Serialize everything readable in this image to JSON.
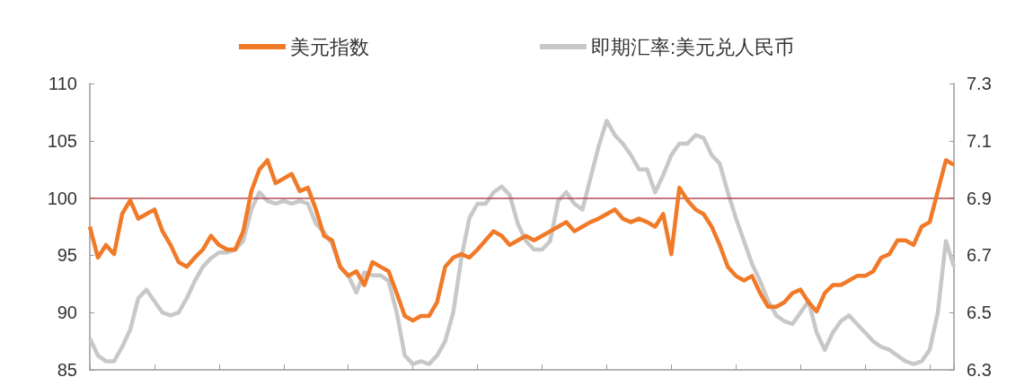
{
  "chart_data": {
    "type": "line",
    "categories": [
      null,
      null,
      null,
      null,
      null,
      null,
      null,
      null,
      null,
      null,
      null,
      null,
      null,
      null,
      null,
      null,
      null,
      null,
      null,
      null,
      null,
      null,
      null,
      null,
      null,
      null,
      null,
      null,
      null,
      null,
      null,
      null,
      null,
      null,
      null,
      null,
      null,
      null,
      null,
      null,
      null,
      null,
      null,
      null,
      null,
      null,
      null,
      null,
      null,
      null,
      null,
      null,
      null,
      null,
      null,
      null,
      null,
      null,
      null,
      null,
      null,
      null,
      null,
      null,
      null,
      null,
      null,
      null,
      null,
      null,
      null,
      null,
      null,
      null,
      null,
      null,
      null,
      null,
      null,
      null,
      null,
      null,
      null,
      null,
      null,
      null,
      null,
      null,
      null,
      null,
      null,
      null,
      null,
      null,
      null,
      null,
      null,
      null,
      null,
      null,
      null,
      null,
      null,
      null,
      null,
      null,
      null,
      null
    ],
    "series": [
      {
        "name": "美元指数",
        "color": "#f07a28",
        "values": [
          97.5,
          94.8,
          95.9,
          95.1,
          98.6,
          99.8,
          98.2,
          98.6,
          99.0,
          97.1,
          95.9,
          94.4,
          94.0,
          94.8,
          95.5,
          96.7,
          95.9,
          95.5,
          95.5,
          97.1,
          100.6,
          102.5,
          103.3,
          101.3,
          101.7,
          102.1,
          100.6,
          100.9,
          99.0,
          96.7,
          96.3,
          94.0,
          93.2,
          93.6,
          92.4,
          94.4,
          94.0,
          93.6,
          91.7,
          89.7,
          89.3,
          89.7,
          89.7,
          90.9,
          94.0,
          94.8,
          95.1,
          94.8,
          95.5,
          96.3,
          97.1,
          96.7,
          95.9,
          96.3,
          96.7,
          96.3,
          96.7,
          97.1,
          97.5,
          97.9,
          97.1,
          97.5,
          97.9,
          98.2,
          98.6,
          99.0,
          98.2,
          97.9,
          98.2,
          97.9,
          97.5,
          98.6,
          95.1,
          100.9,
          99.8,
          99.0,
          98.6,
          97.5,
          95.9,
          94.0,
          93.2,
          92.8,
          93.2,
          91.7,
          90.5,
          90.5,
          90.9,
          91.7,
          92.0,
          90.9,
          90.1,
          91.7,
          92.4,
          92.4,
          92.8,
          93.2,
          93.2,
          93.6,
          94.8,
          95.1,
          96.3,
          96.3,
          95.9,
          97.5,
          97.9,
          100.6,
          103.3,
          102.9
        ]
      },
      {
        "name": "即期汇率:美元兑人民币",
        "color": "#c8c8c8",
        "axis": "y2",
        "values": [
          6.41,
          6.35,
          6.33,
          6.33,
          6.38,
          6.44,
          6.55,
          6.58,
          6.54,
          6.5,
          6.49,
          6.5,
          6.55,
          6.61,
          6.66,
          6.69,
          6.71,
          6.71,
          6.72,
          6.75,
          6.86,
          6.92,
          6.89,
          6.88,
          6.89,
          6.88,
          6.89,
          6.88,
          6.81,
          6.78,
          6.74,
          6.66,
          6.63,
          6.57,
          6.64,
          6.63,
          6.63,
          6.61,
          6.5,
          6.35,
          6.32,
          6.33,
          6.32,
          6.35,
          6.4,
          6.5,
          6.69,
          6.83,
          6.88,
          6.88,
          6.92,
          6.94,
          6.91,
          6.81,
          6.75,
          6.72,
          6.72,
          6.75,
          6.89,
          6.92,
          6.88,
          6.86,
          6.97,
          7.08,
          7.17,
          7.12,
          7.09,
          7.05,
          7.0,
          7.0,
          6.92,
          6.98,
          7.05,
          7.09,
          7.09,
          7.12,
          7.11,
          7.05,
          7.02,
          6.92,
          6.83,
          6.75,
          6.67,
          6.61,
          6.54,
          6.49,
          6.47,
          6.46,
          6.5,
          6.54,
          6.43,
          6.37,
          6.43,
          6.47,
          6.49,
          6.46,
          6.43,
          6.4,
          6.38,
          6.37,
          6.35,
          6.33,
          6.32,
          6.33,
          6.37,
          6.5,
          6.75,
          6.66
        ]
      }
    ],
    "ylim": [
      85,
      110
    ],
    "yticks": [
      85,
      90,
      95,
      100,
      105,
      110
    ],
    "y2lim": [
      6.3,
      7.3
    ],
    "y2ticks": [
      6.3,
      6.5,
      6.7,
      6.9,
      7.1,
      7.3
    ],
    "ref_lines": [
      {
        "axis": "y",
        "value": 100,
        "color": "#b5484f"
      }
    ],
    "legend": "top",
    "marker": "none"
  }
}
